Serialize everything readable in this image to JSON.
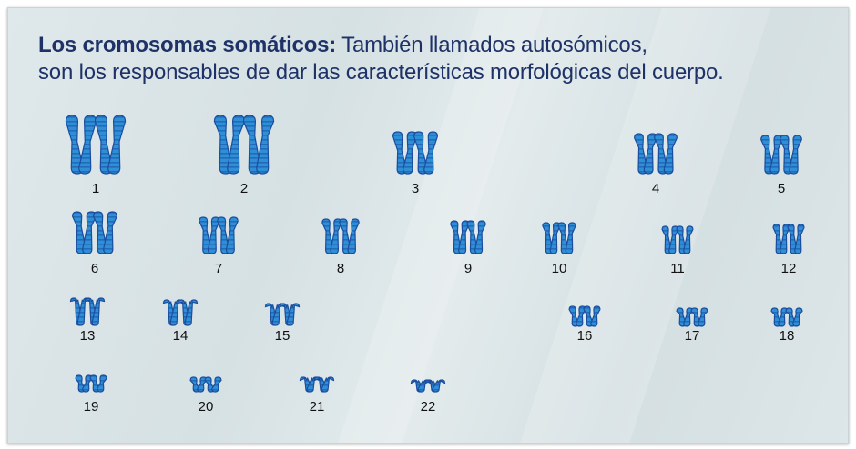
{
  "heading": {
    "bold": "Los cromosomas somáticos:",
    "rest": " También llamados autosómicos,",
    "line2": "son los responsables de dar las características morfológicas del cuerpo."
  },
  "colors": {
    "chromosome_fill": "#2f8fd6",
    "chromosome_band": "#1a4d9e",
    "heading": "#1e3268"
  },
  "chromosomes": [
    {
      "label": "1",
      "shape": "long-metacentric"
    },
    {
      "label": "2",
      "shape": "long-submetacentric-bent"
    },
    {
      "label": "3",
      "shape": "metacentric"
    },
    {
      "label": "4",
      "shape": "submetacentric"
    },
    {
      "label": "5",
      "shape": "submetacentric"
    },
    {
      "label": "6",
      "shape": "submetacentric"
    },
    {
      "label": "7",
      "shape": "submetacentric"
    },
    {
      "label": "8",
      "shape": "submetacentric"
    },
    {
      "label": "9",
      "shape": "submetacentric"
    },
    {
      "label": "10",
      "shape": "submetacentric"
    },
    {
      "label": "11",
      "shape": "submetacentric"
    },
    {
      "label": "12",
      "shape": "submetacentric"
    },
    {
      "label": "13",
      "shape": "acrocentric"
    },
    {
      "label": "14",
      "shape": "acrocentric"
    },
    {
      "label": "15",
      "shape": "acrocentric"
    },
    {
      "label": "16",
      "shape": "small-metacentric"
    },
    {
      "label": "17",
      "shape": "small-submetacentric"
    },
    {
      "label": "18",
      "shape": "small-submetacentric"
    },
    {
      "label": "19",
      "shape": "small-metacentric"
    },
    {
      "label": "20",
      "shape": "small-metacentric"
    },
    {
      "label": "21",
      "shape": "small-acrocentric"
    },
    {
      "label": "22",
      "shape": "small-acrocentric"
    }
  ]
}
